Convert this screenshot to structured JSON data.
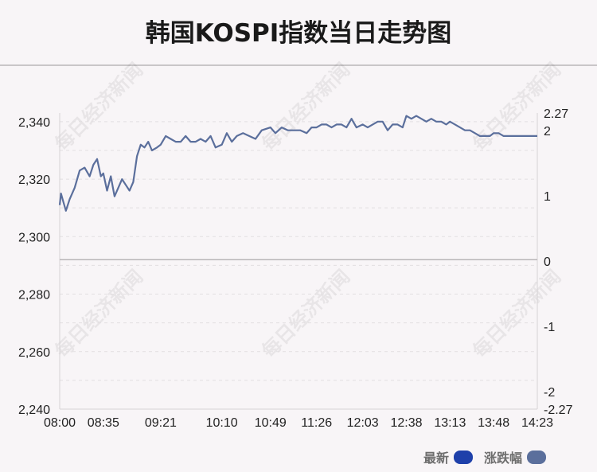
{
  "title": "韩国KOSPI指数当日走势图",
  "watermark": "每日经济新闻",
  "legend": [
    {
      "label": "最新",
      "color": "#1e40aa"
    },
    {
      "label": "涨跌幅",
      "color": "#5b6f9c"
    }
  ],
  "chart_data": {
    "type": "line",
    "x_ticks": [
      "08:00",
      "08:35",
      "09:21",
      "10:10",
      "10:49",
      "11:26",
      "12:03",
      "12:38",
      "13:13",
      "13:48",
      "14:23"
    ],
    "y_left": {
      "ticks": [
        "2,340",
        "2,320",
        "2,300",
        "2,280",
        "2,260",
        "2,240"
      ],
      "min": 2240,
      "max": 2343,
      "baseline": 2292
    },
    "y_right": {
      "ticks": [
        "2.27",
        "2",
        "1",
        "0",
        "-1",
        "-2",
        "-2.27"
      ],
      "min": -2.27,
      "max": 2.27
    },
    "grid": true,
    "line_color": "#5b6f9c",
    "series": [
      {
        "x": [
          "08:00",
          "08:01",
          "08:03",
          "08:05",
          "08:08",
          "08:12",
          "08:16",
          "08:20",
          "08:24",
          "08:27",
          "08:30",
          "08:33",
          "08:35",
          "08:38",
          "08:41",
          "08:44",
          "08:47",
          "08:50",
          "08:53",
          "08:56",
          "08:59",
          "09:02",
          "09:05",
          "09:08",
          "09:11",
          "09:14",
          "09:18",
          "09:21",
          "09:25",
          "09:29",
          "09:33",
          "09:37",
          "09:41",
          "09:45",
          "09:49",
          "09:53",
          "09:57",
          "10:01",
          "10:05",
          "10:10",
          "10:14",
          "10:18",
          "10:22",
          "10:27",
          "10:32",
          "10:37",
          "10:42",
          "10:49",
          "10:53",
          "10:58",
          "11:03",
          "11:08",
          "11:13",
          "11:18",
          "11:22",
          "11:26",
          "11:30",
          "11:34",
          "11:38",
          "11:42",
          "11:46",
          "11:50",
          "11:54",
          "11:58",
          "12:03",
          "12:07",
          "12:11",
          "12:15",
          "12:19",
          "12:23",
          "12:27",
          "12:31",
          "12:35",
          "12:38",
          "12:42",
          "12:46",
          "12:50",
          "12:54",
          "12:58",
          "13:02",
          "13:06",
          "13:10",
          "13:13",
          "13:17",
          "13:21",
          "13:25",
          "13:29",
          "13:33",
          "13:37",
          "13:41",
          "13:45",
          "13:48",
          "13:52",
          "13:56",
          "14:00",
          "14:04",
          "14:08",
          "14:12",
          "14:16",
          "14:20",
          "14:23"
        ],
        "y": [
          2311,
          2315,
          2312,
          2309,
          2313,
          2317,
          2323,
          2324,
          2321,
          2325,
          2327,
          2321,
          2322,
          2316,
          2321,
          2314,
          2317,
          2320,
          2318,
          2316,
          2319,
          2328,
          2332,
          2331,
          2333,
          2330,
          2331,
          2332,
          2335,
          2334,
          2333,
          2333,
          2335,
          2333,
          2333,
          2334,
          2333,
          2335,
          2331,
          2332,
          2336,
          2333,
          2335,
          2336,
          2335,
          2334,
          2337,
          2338,
          2336,
          2338,
          2337,
          2337,
          2337,
          2336,
          2338,
          2338,
          2339,
          2339,
          2338,
          2339,
          2339,
          2338,
          2341,
          2338,
          2339,
          2338,
          2339,
          2340,
          2340,
          2337,
          2339,
          2339,
          2338,
          2342,
          2341,
          2342,
          2341,
          2340,
          2341,
          2340,
          2340,
          2339,
          2340,
          2339,
          2338,
          2337,
          2337,
          2336,
          2335,
          2335,
          2335,
          2336,
          2336,
          2335,
          2335,
          2335,
          2335,
          2335,
          2335,
          2335,
          2335
        ]
      }
    ]
  }
}
